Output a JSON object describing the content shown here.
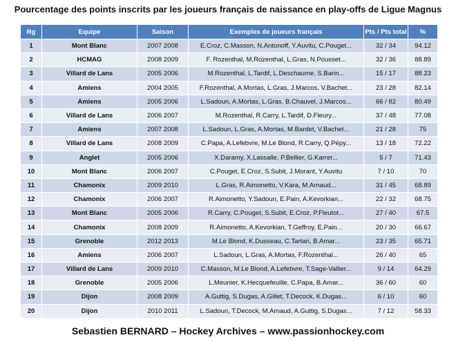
{
  "title": "Pourcentage des points inscrits par les joueurs français de naissance en play-offs de Ligue Magnus",
  "columns": [
    "Rg",
    "Equipe",
    "Saison",
    "Exemples de joueurs français",
    "Pts / Pts total",
    "%"
  ],
  "rows": [
    {
      "rg": "1",
      "team": "Mont Blanc",
      "season": "2007 2008",
      "players": "E.Croz, C.Masson, N.Antonoff, Y.Auvitu, C.Pouget...",
      "pts": "32 / 34",
      "pct": "94.12"
    },
    {
      "rg": "2",
      "team": "HCMAG",
      "season": "2008 2009",
      "players": "F. Rozenthal, M.Rozenthal, L.Gras, N.Pousset...",
      "pts": "32 / 36",
      "pct": "88.89"
    },
    {
      "rg": "3",
      "team": "Villard de Lans",
      "season": "2005 2006",
      "players": "M.Rozenthal, L.Tardif, L.Deschaume, S.Barin...",
      "pts": "15 / 17",
      "pct": "88.23"
    },
    {
      "rg": "4",
      "team": "Amiens",
      "season": "2004 2005",
      "players": "F.Rozenthal, A.Mortas, L.Gras, J.Marcos, V.Bachet...",
      "pts": "23 / 28",
      "pct": "82.14"
    },
    {
      "rg": "5",
      "team": "Amiens",
      "season": "2005 2006",
      "players": "L.Sadoun, A.Mortas, L.Gras, B.Chauvel, J.Marcos...",
      "pts": "66 / 82",
      "pct": "80.49"
    },
    {
      "rg": "6",
      "team": "Villard de Lans",
      "season": "2006 2007",
      "players": "M.Rozenthal, R.Carry, L.Tardif, D.Fleury...",
      "pts": "37 / 48",
      "pct": "77.08"
    },
    {
      "rg": "7",
      "team": "Amiens",
      "season": "2007 2008",
      "players": "L.Sadoun, L.Gras, A.Mortas, M.Bardet, V.Bachet...",
      "pts": "21 / 28",
      "pct": "75"
    },
    {
      "rg": "8",
      "team": "Villard de Lans",
      "season": "2008 2009",
      "players": "C.Papa, A.Lefebvre, M.Le Blond, R.Carry, Q.Pépy...",
      "pts": "13 / 18",
      "pct": "72.22"
    },
    {
      "rg": "9",
      "team": "Anglet",
      "season": "2005 2006",
      "players": "X.Daramy, X.Lassalle, P.Bellier, G.Karrer...",
      "pts": "5 / 7",
      "pct": "71.43"
    },
    {
      "rg": "10",
      "team": "Mont Blanc",
      "season": "2006 2007",
      "players": "C.Pouget, E.Croz, S.Subit, J.Morant, Y.Auvitu",
      "pts": "7 / 10",
      "pct": "70"
    },
    {
      "rg": "11",
      "team": "Chamonix",
      "season": "2009 2010",
      "players": "L.Gras, R.Aimonetto, V.Kara, M.Arnaud...",
      "pts": "31 / 45",
      "pct": "68.89"
    },
    {
      "rg": "12",
      "team": "Chamonix",
      "season": "2006 2007",
      "players": "R.Aimonetto, Y.Sadoun, E.Pain, A.Kevorkian...",
      "pts": "22 / 32",
      "pct": "68.75"
    },
    {
      "rg": "13",
      "team": "Mont Blanc",
      "season": "2005 2006",
      "players": "R.Carry, C.Pouget, S.Subit, E.Croz, P.Fleutot...",
      "pts": "27 / 40",
      "pct": "67.5"
    },
    {
      "rg": "14",
      "team": "Chamonix",
      "season": "2008 2009",
      "players": "R.Aimonetto, A.Kevorkian, T.Geffroy, E.Pain...",
      "pts": "20 / 30",
      "pct": "66.67"
    },
    {
      "rg": "15",
      "team": "Grenoble",
      "season": "2012 2013",
      "players": "M.Le Blond, K.Dusseau, C.Tartari, B.Amar...",
      "pts": "23 / 35",
      "pct": "65.71"
    },
    {
      "rg": "16",
      "team": "Amiens",
      "season": "2006 2007",
      "players": "L.Sadoun, L.Gras, A.Mortas, F.Rozenthal...",
      "pts": "26 / 40",
      "pct": "65"
    },
    {
      "rg": "17",
      "team": "Villard de Lans",
      "season": "2009 2010",
      "players": "C.Masson, M.Le Blond, A.Lefebvre, T.Sage-Vallier...",
      "pts": "9 / 14",
      "pct": "64.29"
    },
    {
      "rg": "18",
      "team": "Grenoble",
      "season": "2005 2006",
      "players": "L.Meunier, K.Hecquefeuille, C.Papa, B.Amar...",
      "pts": "36 / 60",
      "pct": "60"
    },
    {
      "rg": "19",
      "team": "Dijon",
      "season": "2008 2009",
      "players": "A.Guttig, S.Dugas, A.Gillet, T.Decock, K.Dugas...",
      "pts": "6 / 10",
      "pct": "60"
    },
    {
      "rg": "20",
      "team": "Dijon",
      "season": "2010 2011",
      "players": "L.Sadoun, T.Decock, M.Arnaud, A.Guttig, S.Dugas...",
      "pts": "7 / 12",
      "pct": "58.33"
    }
  ],
  "footer": "Sebastien BERNARD – Hockey Archives – www.passionhockey.com",
  "colors": {
    "header_bg": "#4f81bd",
    "row_dark": "#cfd7e7",
    "row_light": "#e8ecf4"
  }
}
